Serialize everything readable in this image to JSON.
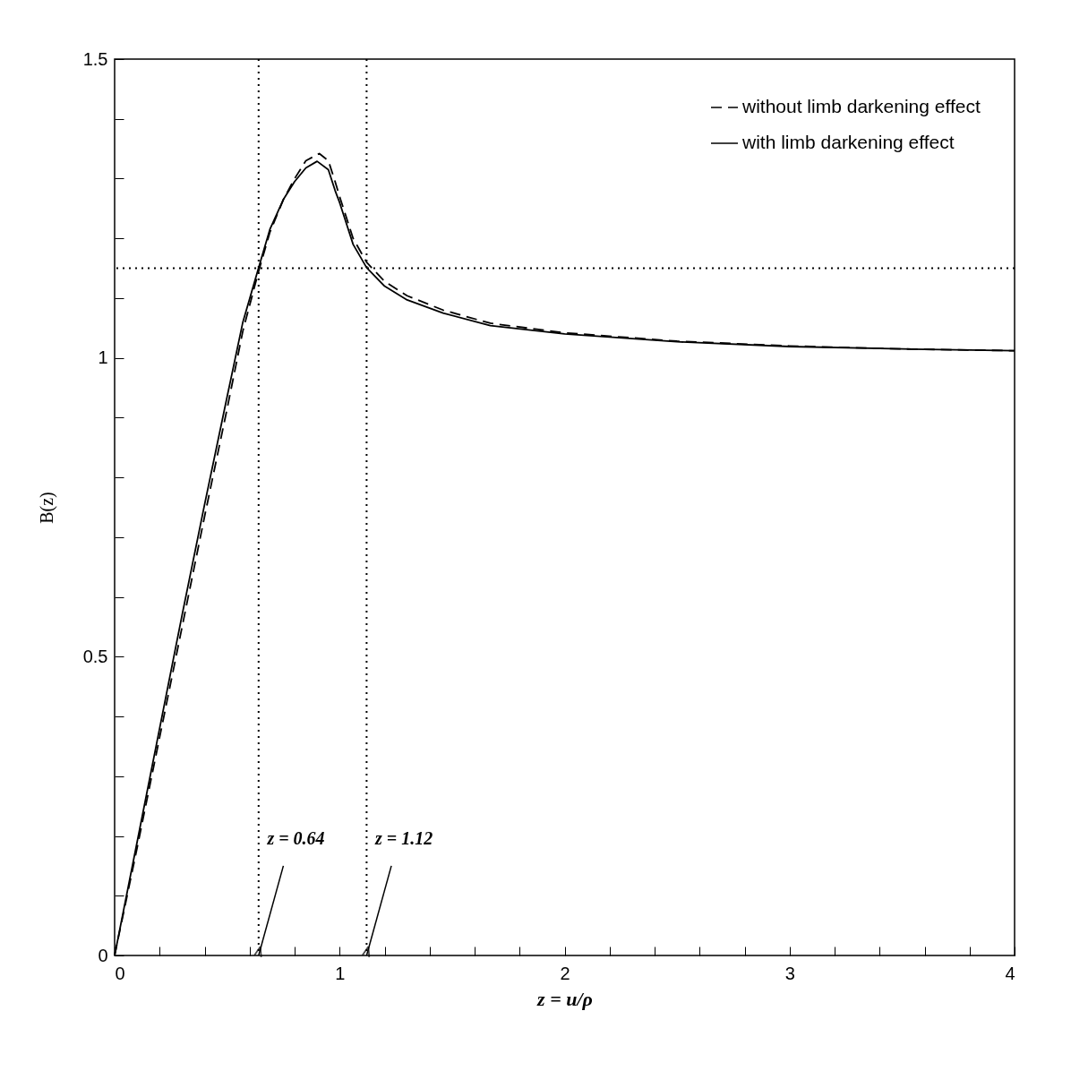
{
  "chart_data": {
    "type": "line",
    "xlabel": "z = u/ρ",
    "ylabel": "B(z)",
    "xlim": [
      0,
      4
    ],
    "ylim": [
      0,
      1.5
    ],
    "xticks": [
      0,
      {
        "value": 0.2,
        "label": null
      },
      {
        "value": 0.4,
        "label": null
      },
      {
        "value": 0.6,
        "label": null
      },
      {
        "value": 0.8,
        "label": null
      },
      1,
      {
        "value": 1.2,
        "label": null
      },
      {
        "value": 1.4,
        "label": null
      },
      {
        "value": 1.6,
        "label": null
      },
      {
        "value": 1.8,
        "label": null
      },
      2,
      {
        "value": 2.2,
        "label": null
      },
      {
        "value": 2.4,
        "label": null
      },
      {
        "value": 2.6,
        "label": null
      },
      {
        "value": 2.8,
        "label": null
      },
      3,
      {
        "value": 3.2,
        "label": null
      },
      {
        "value": 3.4,
        "label": null
      },
      {
        "value": 3.6,
        "label": null
      },
      {
        "value": 3.8,
        "label": null
      },
      4
    ],
    "yticks": [
      0,
      {
        "value": 0.1,
        "label": null
      },
      {
        "value": 0.2,
        "label": null
      },
      {
        "value": 0.3,
        "label": null
      },
      {
        "value": 0.4,
        "label": null
      },
      0.5,
      {
        "value": 0.6,
        "label": null
      },
      {
        "value": 0.7,
        "label": null
      },
      {
        "value": 0.8,
        "label": null
      },
      {
        "value": 0.9,
        "label": null
      },
      1,
      {
        "value": 1.1,
        "label": null
      },
      {
        "value": 1.2,
        "label": null
      },
      {
        "value": 1.3,
        "label": null
      },
      {
        "value": 1.4,
        "label": null
      },
      1.5
    ],
    "grid": false,
    "legend": "top right",
    "series": [
      {
        "name": "without limb darkening effect",
        "color": "#000000",
        "line_style": "dashed",
        "x": [
          0,
          0.1,
          0.2,
          0.3,
          0.4,
          0.5,
          0.57,
          0.64,
          0.69,
          0.75,
          0.8,
          0.85,
          0.91,
          0.95,
          0.98,
          1.0,
          1.03,
          1.06,
          1.12,
          1.2,
          1.3,
          1.46,
          1.67,
          2.0,
          2.5,
          3.0,
          3.5,
          4.0
        ],
        "values": [
          0,
          0.18,
          0.365,
          0.55,
          0.735,
          0.915,
          1.045,
          1.145,
          1.21,
          1.265,
          1.3,
          1.33,
          1.342,
          1.33,
          1.295,
          1.27,
          1.235,
          1.2,
          1.16,
          1.128,
          1.104,
          1.08,
          1.058,
          1.042,
          1.028,
          1.02,
          1.015,
          1.012
        ]
      },
      {
        "name": "with limb darkening effect",
        "color": "#000000",
        "line_style": "solid",
        "x": [
          0,
          0.1,
          0.2,
          0.3,
          0.4,
          0.5,
          0.57,
          0.64,
          0.69,
          0.75,
          0.8,
          0.85,
          0.9,
          0.95,
          0.98,
          1.0,
          1.03,
          1.06,
          1.12,
          1.2,
          1.3,
          1.46,
          1.67,
          2.0,
          2.5,
          3.0,
          3.5,
          4.0
        ],
        "values": [
          0,
          0.19,
          0.38,
          0.57,
          0.755,
          0.935,
          1.06,
          1.151,
          1.215,
          1.265,
          1.295,
          1.318,
          1.329,
          1.315,
          1.28,
          1.26,
          1.225,
          1.19,
          1.151,
          1.12,
          1.097,
          1.075,
          1.054,
          1.04,
          1.027,
          1.019,
          1.015,
          1.012
        ]
      }
    ],
    "ref_lines": [
      {
        "axis": "x",
        "value": 0.64,
        "line_style": "dotted"
      },
      {
        "axis": "x",
        "value": 1.12,
        "line_style": "dotted"
      },
      {
        "axis": "y",
        "value": 1.15,
        "line_style": "dotted"
      }
    ],
    "annotations": [
      {
        "text": "z = 0.64",
        "x": 0.64
      },
      {
        "text": "z = 1.12",
        "x": 1.12
      }
    ]
  }
}
